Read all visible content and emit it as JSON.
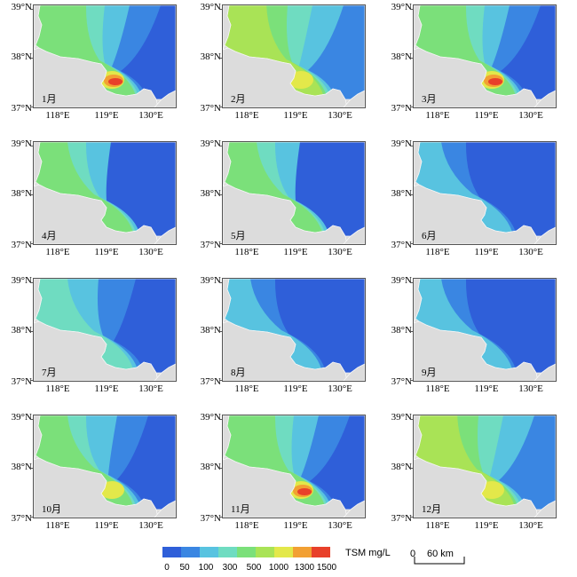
{
  "axes": {
    "y_ticks": [
      "39°N",
      "38°N",
      "37°N"
    ],
    "x_ticks": [
      "118°E",
      "119°E",
      "130°E"
    ]
  },
  "panels": [
    {
      "month": "1月",
      "pattern": "high-red"
    },
    {
      "month": "2月",
      "pattern": "high-green"
    },
    {
      "month": "3月",
      "pattern": "high-red"
    },
    {
      "month": "4月",
      "pattern": "medium"
    },
    {
      "month": "5月",
      "pattern": "medium"
    },
    {
      "month": "6月",
      "pattern": "low"
    },
    {
      "month": "7月",
      "pattern": "medium-low"
    },
    {
      "month": "8月",
      "pattern": "low"
    },
    {
      "month": "9月",
      "pattern": "low"
    },
    {
      "month": "10月",
      "pattern": "medium-high"
    },
    {
      "month": "11月",
      "pattern": "high-red"
    },
    {
      "month": "12月",
      "pattern": "high-green"
    }
  ],
  "legend": {
    "unit": "TSM mg/L",
    "ticks": [
      "0",
      "50",
      "100",
      "300",
      "500",
      "1000",
      "1300",
      "1500"
    ],
    "colors": [
      "#2f5fd9",
      "#3a86e2",
      "#58c3e0",
      "#6fdcc1",
      "#7be07a",
      "#a9e356",
      "#e3e84a",
      "#f2a033",
      "#e8402a"
    ]
  },
  "scale_bar": {
    "start": "0",
    "end": "60 km"
  },
  "colors": {
    "land": "#dcdcdc",
    "deep_blue": "#2f5fd9",
    "mid_blue": "#3a86e2",
    "cyan": "#58c3e0",
    "teal": "#6fdcc1",
    "green": "#7be07a",
    "lime": "#a9e356",
    "yellow": "#e3e84a",
    "orange": "#f2a033",
    "red": "#e8402a"
  }
}
